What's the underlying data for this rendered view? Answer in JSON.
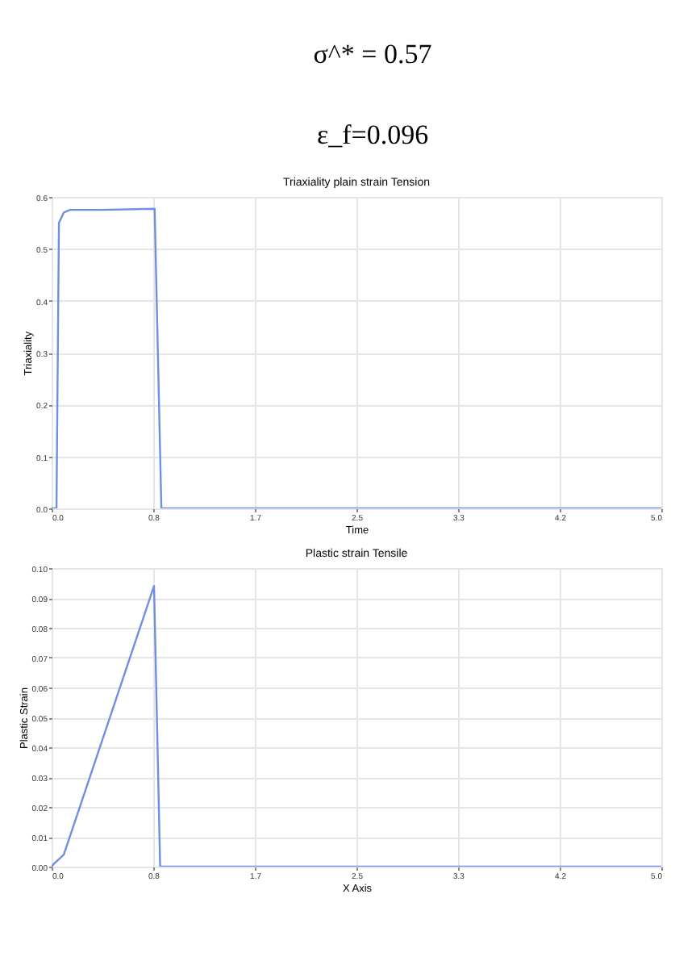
{
  "chart_data": [
    {
      "type": "line",
      "title": "Triaxiality plain strain Tension",
      "xlabel": "Time",
      "ylabel": "Triaxiality",
      "annotations": [
        "σ^* = 0.57",
        "ε_f=0.096"
      ],
      "series": [
        {
          "color": "#6f8fdf",
          "x": [
            0,
            0.04,
            0.06,
            0.1,
            0.15,
            0.4,
            0.845,
            0.9,
            5.0
          ],
          "values": [
            0,
            0,
            0.55,
            0.57,
            0.575,
            0.575,
            0.577,
            0,
            0
          ]
        }
      ],
      "xlim": [
        0,
        5.0
      ],
      "xticks": [
        {
          "value": 0,
          "label": "0.0"
        },
        {
          "value": 0.833,
          "label": "0.8"
        },
        {
          "value": 1.667,
          "label": "1.7"
        },
        {
          "value": 2.5,
          "label": "2.5"
        },
        {
          "value": 3.333,
          "label": "3.3"
        },
        {
          "value": 4.167,
          "label": "4.2"
        },
        {
          "value": 5.0,
          "label": "5.0"
        }
      ],
      "ylim": [
        0,
        0.6
      ],
      "yticks": [
        {
          "value": 0,
          "label": "0.0"
        },
        0.1,
        0.2,
        0.3,
        0.4,
        0.5,
        0.6
      ],
      "grid": true,
      "marker": "none",
      "line_style": "solid"
    },
    {
      "type": "line",
      "title": "Plastic strain Tensile",
      "xlabel": "X Axis",
      "ylabel": "Plastic Strain",
      "series": [
        {
          "color": "#6f8fdf",
          "x": [
            0,
            0.02,
            0.1,
            0.84,
            0.89,
            5.0
          ],
          "values": [
            0,
            0.001,
            0.004,
            0.094,
            0,
            0
          ]
        }
      ],
      "xlim": [
        0,
        5.0
      ],
      "xticks": [
        {
          "value": 0,
          "label": "0.0"
        },
        {
          "value": 0.833,
          "label": "0.8"
        },
        {
          "value": 1.667,
          "label": "1.7"
        },
        {
          "value": 2.5,
          "label": "2.5"
        },
        {
          "value": 3.333,
          "label": "3.3"
        },
        {
          "value": 4.167,
          "label": "4.2"
        },
        {
          "value": 5.0,
          "label": "5.0"
        }
      ],
      "ylim": [
        0,
        0.1
      ],
      "yticks": [
        {
          "value": 0,
          "label": "0.00"
        },
        {
          "value": 0.01,
          "label": "0.01"
        },
        {
          "value": 0.02,
          "label": "0.02"
        },
        {
          "value": 0.03,
          "label": "0.03"
        },
        {
          "value": 0.04,
          "label": "0.04"
        },
        {
          "value": 0.05,
          "label": "0.05"
        },
        {
          "value": 0.06,
          "label": "0.06"
        },
        {
          "value": 0.07,
          "label": "0.07"
        },
        {
          "value": 0.08,
          "label": "0.08"
        },
        {
          "value": 0.09,
          "label": "0.09"
        },
        {
          "value": 0.1,
          "label": "0.10"
        }
      ],
      "grid": true,
      "marker": "none",
      "line_style": "solid"
    }
  ]
}
